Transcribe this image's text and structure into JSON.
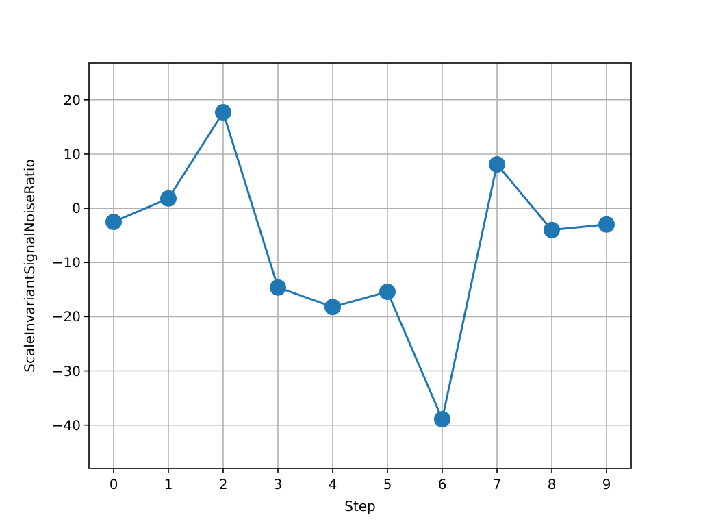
{
  "chart_data": {
    "type": "line",
    "xlabel": "Step",
    "ylabel": "ScaleInvariantSignalNoiseRatio",
    "x": [
      0,
      1,
      2,
      3,
      4,
      5,
      6,
      7,
      8,
      9
    ],
    "series": [
      {
        "color": "#1f77b4",
        "values": [
          -2.5,
          1.8,
          17.7,
          -14.6,
          -18.2,
          -15.4,
          -38.9,
          8.1,
          -4.0,
          -3.0
        ]
      }
    ],
    "xlim": [
      -0.45,
      9.45
    ],
    "xticks": [
      0,
      1,
      2,
      3,
      4,
      5,
      6,
      7,
      8,
      9
    ],
    "ylim": [
      -48,
      26.8
    ],
    "yticks": [
      -40,
      -30,
      -20,
      -10,
      0,
      10,
      20
    ],
    "grid": true,
    "marker": "circle",
    "line_style": "solid"
  }
}
